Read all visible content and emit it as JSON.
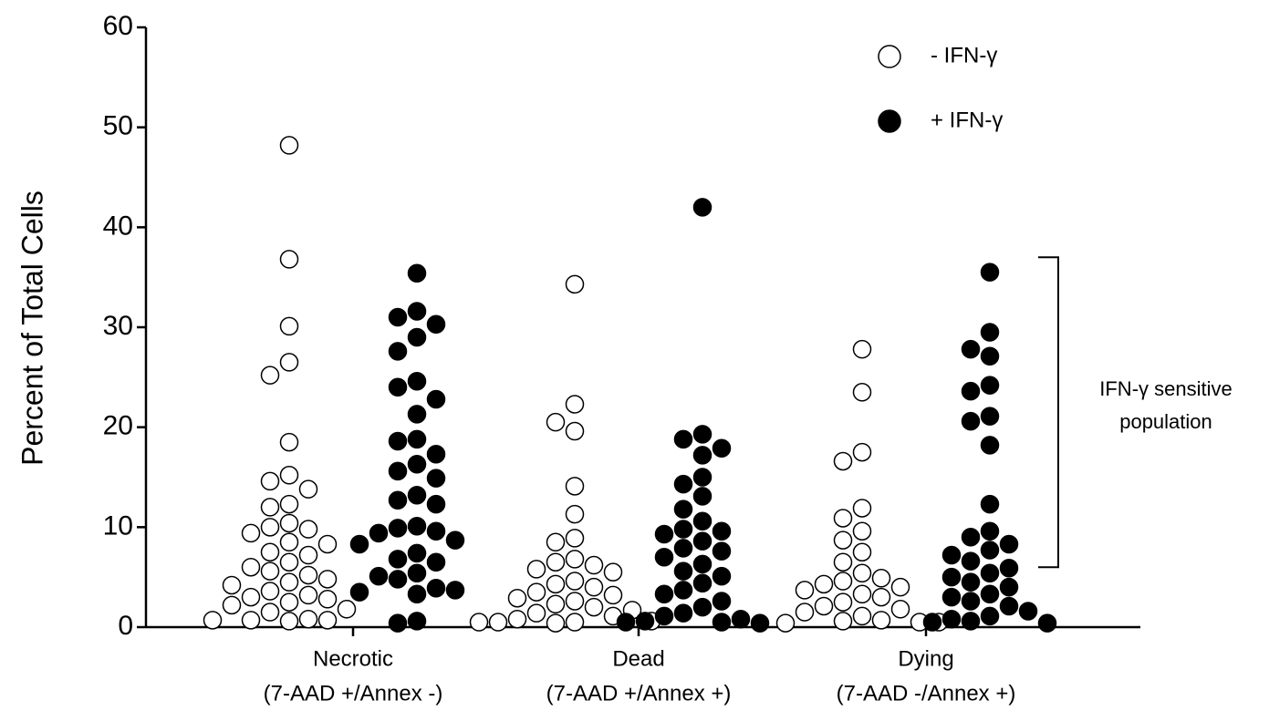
{
  "chart_data": {
    "type": "dotplot",
    "ylabel": "Percent of Total Cells",
    "categories": [
      "Necrotic",
      "Dead",
      "Dying"
    ],
    "category_sublabels": [
      "(7-AAD +/Annex -)",
      "(7-AAD +/Annex +)",
      "(7-AAD -/Annex +)"
    ],
    "ylim": [
      0,
      60
    ],
    "yticks": [
      0,
      10,
      20,
      30,
      40,
      50,
      60
    ],
    "series": [
      {
        "name": "- IFN-γ",
        "color": "#ffffff",
        "values": [
          [
            48.2,
            36.8,
            30.1,
            26.5,
            25.2,
            18.5,
            15.2,
            14.6,
            13.8,
            12.3,
            12.0,
            10.4,
            10.0,
            9.8,
            9.4,
            8.5,
            8.3,
            7.5,
            7.2,
            6.5,
            6.0,
            5.6,
            5.2,
            4.8,
            4.5,
            4.2,
            3.6,
            3.2,
            3.0,
            2.8,
            2.5,
            2.2,
            1.8,
            1.5,
            0.8,
            0.7,
            0.7,
            0.6,
            0.7
          ],
          [
            34.3,
            22.3,
            20.5,
            19.6,
            14.1,
            11.3,
            8.9,
            8.5,
            6.8,
            6.5,
            6.2,
            5.8,
            5.5,
            4.6,
            4.3,
            4.0,
            3.5,
            3.2,
            2.9,
            2.6,
            2.3,
            2.0,
            1.7,
            1.4,
            1.1,
            0.8,
            0.5,
            0.4,
            0.5,
            0.6,
            0.5
          ],
          [
            27.8,
            23.5,
            17.5,
            16.6,
            11.9,
            10.9,
            9.6,
            8.7,
            7.5,
            6.5,
            5.4,
            4.9,
            4.6,
            4.3,
            4.0,
            3.7,
            3.3,
            3.0,
            2.5,
            2.1,
            1.8,
            1.5,
            1.1,
            0.7,
            0.6,
            0.5,
            0.4,
            0.5
          ]
        ]
      },
      {
        "name": "+ IFN-γ",
        "color": "#000000",
        "values": [
          [
            35.4,
            31.6,
            31.0,
            30.3,
            29.0,
            27.6,
            24.6,
            24.0,
            22.8,
            21.3,
            18.8,
            18.6,
            17.3,
            16.3,
            15.6,
            14.9,
            13.2,
            12.7,
            12.3,
            10.1,
            9.9,
            9.6,
            9.4,
            8.7,
            8.3,
            7.4,
            6.8,
            6.5,
            5.4,
            5.1,
            4.8,
            3.9,
            3.7,
            3.3,
            3.5,
            0.6,
            0.4
          ],
          [
            42.0,
            19.3,
            18.8,
            17.9,
            17.2,
            15.0,
            14.3,
            13.1,
            11.8,
            10.6,
            9.8,
            9.6,
            9.3,
            8.6,
            7.9,
            7.6,
            7.0,
            6.3,
            5.6,
            5.1,
            4.4,
            3.7,
            3.3,
            2.6,
            2.0,
            1.4,
            1.1,
            0.8,
            0.5,
            0.6,
            0.4,
            0.5
          ],
          [
            35.5,
            29.5,
            27.8,
            27.1,
            24.2,
            23.6,
            21.1,
            20.6,
            18.2,
            12.3,
            9.6,
            9.0,
            8.3,
            7.7,
            7.2,
            6.6,
            5.9,
            5.4,
            5.0,
            4.5,
            4.0,
            3.3,
            3.0,
            2.6,
            2.1,
            1.6,
            1.1,
            0.8,
            0.6,
            0.5,
            0.4
          ]
        ]
      }
    ],
    "legend": "top-right",
    "annotation": {
      "lines": [
        "IFN-γ sensitive",
        "population"
      ],
      "range": [
        6,
        37
      ]
    }
  }
}
